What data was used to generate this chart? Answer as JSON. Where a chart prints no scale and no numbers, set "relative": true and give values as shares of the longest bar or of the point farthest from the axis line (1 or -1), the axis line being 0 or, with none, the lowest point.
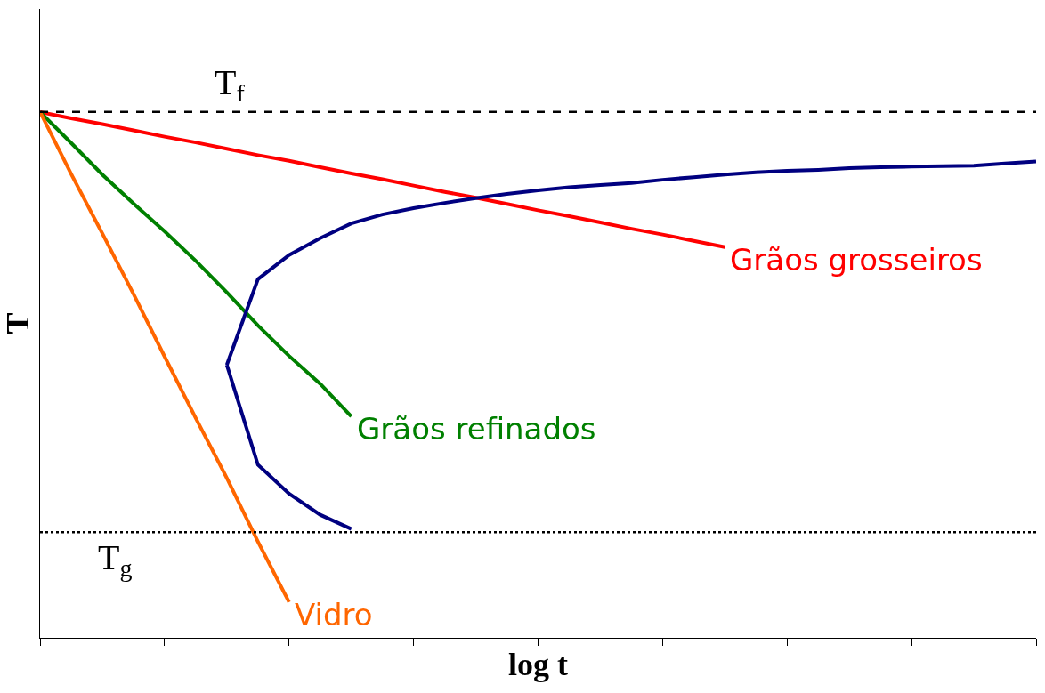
{
  "chart_data": {
    "type": "line",
    "relative": true,
    "xlabel": "log t",
    "ylabel": "T",
    "grid": false,
    "legend": false,
    "tick_labels": false,
    "marker": "none",
    "categories": [
      null,
      null,
      null,
      null,
      null,
      null,
      null,
      null,
      null,
      null,
      null,
      null,
      null,
      null,
      null,
      null,
      null,
      null,
      null,
      null,
      null,
      null,
      null,
      null,
      null,
      null,
      null,
      null,
      null,
      null,
      null,
      null,
      null
    ],
    "ref_lines": [
      {
        "axis": "y",
        "value": 1.0,
        "label": "T$_{f}$",
        "line_style": "dashed",
        "color": "#000000"
      },
      {
        "axis": "y",
        "value": 0.201,
        "label": "T$_{g}$",
        "line_style": "dotted",
        "color": "#000000"
      }
    ],
    "series": [
      {
        "name": "Grãos grosseiros",
        "color": "#ff0000",
        "values": [
          1.0,
          0.988,
          0.977,
          0.965,
          0.953,
          0.942,
          0.93,
          0.918,
          0.907,
          0.895,
          0.883,
          0.872,
          0.86,
          0.848,
          0.837,
          0.825,
          0.813,
          0.802,
          0.79,
          0.778,
          0.767,
          0.755,
          0.743,
          null,
          null,
          null,
          null,
          null,
          null,
          null,
          null,
          null,
          null
        ]
      },
      {
        "name": "Grãos refinados",
        "color": "#008000",
        "values": [
          1.0,
          0.941,
          0.881,
          0.826,
          0.773,
          0.717,
          0.657,
          0.594,
          0.536,
          0.483,
          0.421,
          null,
          null,
          null,
          null,
          null,
          null,
          null,
          null,
          null,
          null,
          null,
          null,
          null,
          null,
          null,
          null,
          null,
          null,
          null,
          null,
          null,
          null
        ]
      },
      {
        "name": "Vidro",
        "color": "#ff6600",
        "values": [
          1.0,
          0.882,
          0.769,
          0.654,
          0.535,
          0.418,
          0.304,
          0.183,
          0.068,
          null,
          null,
          null,
          null,
          null,
          null,
          null,
          null,
          null,
          null,
          null,
          null,
          null,
          null,
          null,
          null,
          null,
          null,
          null,
          null,
          null,
          null,
          null,
          null
        ]
      },
      {
        "color": "#000080",
        "values": [
          null,
          null,
          null,
          null,
          null,
          null,
          0.519,
          0.329,
          0.274,
          0.234,
          0.207,
          null,
          null,
          null,
          null,
          null,
          null,
          null,
          null,
          null,
          null,
          null,
          null,
          null,
          null,
          null,
          null,
          null,
          null,
          null,
          null,
          null,
          null
        ]
      },
      {
        "color": "#000080",
        "values": [
          null,
          null,
          null,
          null,
          null,
          null,
          0.519,
          0.682,
          0.728,
          0.76,
          0.788,
          0.805,
          0.817,
          0.827,
          0.836,
          0.844,
          0.851,
          0.857,
          0.861,
          0.865,
          0.871,
          0.876,
          0.881,
          0.885,
          0.888,
          0.89,
          0.893,
          0.895,
          0.896,
          0.897,
          0.898,
          0.902,
          0.906
        ]
      }
    ]
  }
}
